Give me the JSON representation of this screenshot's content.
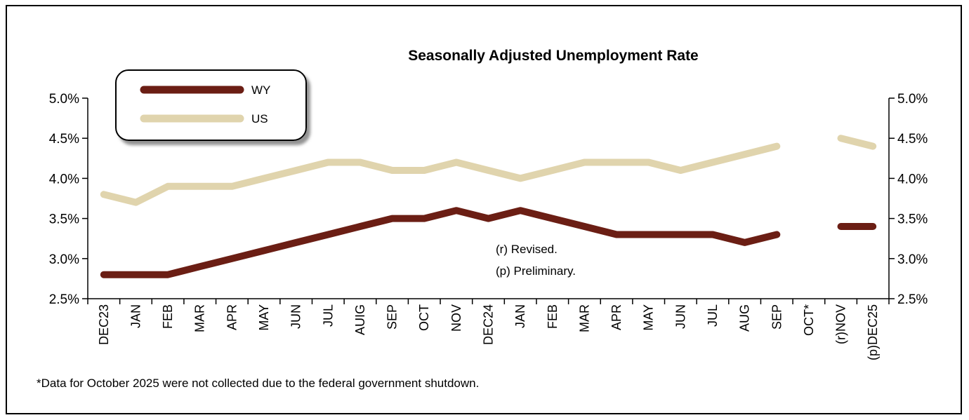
{
  "chart_data": {
    "type": "line",
    "title": "Seasonally Adjusted Unemployment Rate",
    "categories": [
      "DEC23",
      "JAN",
      "FEB",
      "MAR",
      "APR",
      "MAY",
      "JUN",
      "JUL",
      "AUIG",
      "SEP",
      "OCT",
      "NOV",
      "DEC24",
      "JAN",
      "FEB",
      "MAR",
      "APR",
      "MAY",
      "JUN",
      "JUL",
      "AUG",
      "SEP",
      "OCT*",
      "(r)NOV",
      "(p)DEC25"
    ],
    "series": [
      {
        "name": "WY",
        "color": "#6b1e14",
        "values": [
          2.8,
          2.8,
          2.8,
          2.9,
          3.0,
          3.1,
          3.2,
          3.3,
          3.4,
          3.5,
          3.5,
          3.6,
          3.5,
          3.6,
          3.5,
          3.4,
          3.3,
          3.3,
          3.3,
          3.3,
          3.2,
          3.3,
          null,
          3.4,
          3.4
        ]
      },
      {
        "name": "US",
        "color": "#e0d4ad",
        "values": [
          3.8,
          3.7,
          3.9,
          3.9,
          3.9,
          4.0,
          4.1,
          4.2,
          4.2,
          4.1,
          4.1,
          4.2,
          4.1,
          4.0,
          4.1,
          4.2,
          4.2,
          4.2,
          4.1,
          4.2,
          4.3,
          4.4,
          null,
          4.5,
          4.4
        ]
      }
    ],
    "ylim": [
      2.5,
      5.0
    ],
    "yticks": [
      "2.5%",
      "3.0%",
      "3.5%",
      "4.0%",
      "4.5%",
      "5.0%"
    ],
    "legend_position": "top-left",
    "grid": false,
    "annotations": [
      "(r) Revised.",
      "(p) Preliminary."
    ],
    "footnote": "*Data for October 2025 were not collected due to the federal government shutdown."
  }
}
